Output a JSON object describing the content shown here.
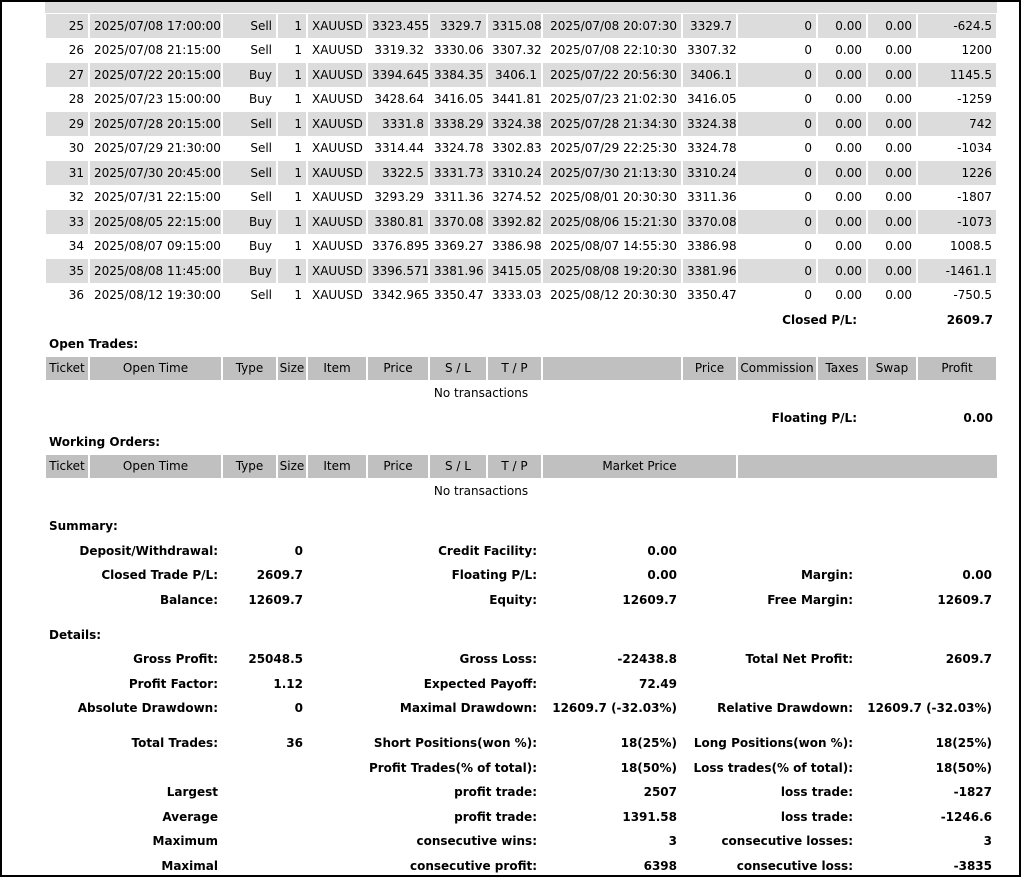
{
  "closed_trades": {
    "rows": [
      [
        "25",
        "2025/07/08 17:00:00",
        "Sell",
        "1",
        "XAUUSD",
        "3323.455",
        "3329.7",
        "3315.08",
        "2025/07/08 20:07:30",
        "3329.7",
        "0",
        "0.00",
        "0.00",
        "-624.5"
      ],
      [
        "26",
        "2025/07/08 21:15:00",
        "Sell",
        "1",
        "XAUUSD",
        "3319.32",
        "3330.06",
        "3307.32",
        "2025/07/08 22:10:30",
        "3307.32",
        "0",
        "0.00",
        "0.00",
        "1200"
      ],
      [
        "27",
        "2025/07/22 20:15:00",
        "Buy",
        "1",
        "XAUUSD",
        "3394.645",
        "3384.35",
        "3406.1",
        "2025/07/22 20:56:30",
        "3406.1",
        "0",
        "0.00",
        "0.00",
        "1145.5"
      ],
      [
        "28",
        "2025/07/23 15:00:00",
        "Buy",
        "1",
        "XAUUSD",
        "3428.64",
        "3416.05",
        "3441.81",
        "2025/07/23 21:02:30",
        "3416.05",
        "0",
        "0.00",
        "0.00",
        "-1259"
      ],
      [
        "29",
        "2025/07/28 20:15:00",
        "Sell",
        "1",
        "XAUUSD",
        "3331.8",
        "3338.29",
        "3324.38",
        "2025/07/28 21:34:30",
        "3324.38",
        "0",
        "0.00",
        "0.00",
        "742"
      ],
      [
        "30",
        "2025/07/29 21:30:00",
        "Sell",
        "1",
        "XAUUSD",
        "3314.44",
        "3324.78",
        "3302.83",
        "2025/07/29 22:25:30",
        "3324.78",
        "0",
        "0.00",
        "0.00",
        "-1034"
      ],
      [
        "31",
        "2025/07/30 20:45:00",
        "Sell",
        "1",
        "XAUUSD",
        "3322.5",
        "3331.73",
        "3310.24",
        "2025/07/30 21:13:30",
        "3310.24",
        "0",
        "0.00",
        "0.00",
        "1226"
      ],
      [
        "32",
        "2025/07/31 22:15:00",
        "Sell",
        "1",
        "XAUUSD",
        "3293.29",
        "3311.36",
        "3274.52",
        "2025/08/01 20:30:30",
        "3311.36",
        "0",
        "0.00",
        "0.00",
        "-1807"
      ],
      [
        "33",
        "2025/08/05 22:15:00",
        "Buy",
        "1",
        "XAUUSD",
        "3380.81",
        "3370.08",
        "3392.82",
        "2025/08/06 15:21:30",
        "3370.08",
        "0",
        "0.00",
        "0.00",
        "-1073"
      ],
      [
        "34",
        "2025/08/07 09:15:00",
        "Buy",
        "1",
        "XAUUSD",
        "3376.895",
        "3369.27",
        "3386.98",
        "2025/08/07 14:55:30",
        "3386.98",
        "0",
        "0.00",
        "0.00",
        "1008.5"
      ],
      [
        "35",
        "2025/08/08 11:45:00",
        "Buy",
        "1",
        "XAUUSD",
        "3396.571",
        "3381.96",
        "3415.05",
        "2025/08/08 19:20:30",
        "3381.96",
        "0",
        "0.00",
        "0.00",
        "-1461.1"
      ],
      [
        "36",
        "2025/08/12 19:30:00",
        "Sell",
        "1",
        "XAUUSD",
        "3342.965",
        "3350.47",
        "3333.03",
        "2025/08/12 20:30:30",
        "3350.47",
        "0",
        "0.00",
        "0.00",
        "-750.5"
      ]
    ],
    "total_label": "Closed P/L:",
    "total": "2609.7"
  },
  "open_trades": {
    "title": "Open Trades:",
    "columns": [
      "Ticket",
      "Open Time",
      "Type",
      "Size",
      "Item",
      "Price",
      "S / L",
      "T / P",
      null,
      "Price",
      "Commission",
      "Taxes",
      "Swap",
      "Profit"
    ],
    "empty": "No transactions",
    "total_label": "Floating P/L:",
    "total": "0.00"
  },
  "working_orders": {
    "title": "Working Orders:",
    "columns": [
      "Ticket",
      "Open Time",
      "Type",
      "Size",
      "Item",
      "Price",
      "S / L",
      "T / P",
      "Market Price"
    ],
    "empty": "No transactions"
  },
  "summary": {
    "title": "Summary:",
    "rows": [
      [
        "Deposit/Withdrawal:",
        "0",
        "Credit Facility:",
        "0.00",
        null,
        null
      ],
      [
        "Closed Trade P/L:",
        "2609.7",
        "Floating P/L:",
        "0.00",
        "Margin:",
        "0.00"
      ],
      [
        "Balance:",
        "12609.7",
        "Equity:",
        "12609.7",
        "Free Margin:",
        "12609.7"
      ]
    ]
  },
  "details": {
    "title": "Details:",
    "rows": [
      [
        "Gross Profit:",
        "25048.5",
        "Gross Loss:",
        "-22438.8",
        "Total Net Profit:",
        "2609.7"
      ],
      [
        "Profit Factor:",
        "1.12",
        "Expected Payoff:",
        "72.49",
        null,
        null
      ],
      [
        "Absolute Drawdown:",
        "0",
        "Maximal Drawdown:",
        "12609.7 (-32.03%)",
        "Relative Drawdown:",
        "12609.7 (-32.03%)"
      ],
      [
        "Total Trades:",
        "36",
        "Short Positions(won %):",
        "18(25%)",
        "Long Positions(won %):",
        "18(25%)"
      ],
      [
        null,
        null,
        "Profit Trades(% of total):",
        "18(50%)",
        "Loss trades(% of total):",
        "18(50%)"
      ],
      [
        "Largest",
        null,
        "profit trade:",
        "2507",
        "loss trade:",
        "-1827"
      ],
      [
        "Average",
        null,
        "profit trade:",
        "1391.58",
        "loss trade:",
        "-1246.6"
      ],
      [
        "Maximum",
        null,
        "consecutive wins:",
        "3",
        "consecutive losses:",
        "3"
      ],
      [
        "Maximal",
        null,
        "consecutive profit:",
        "6398",
        "consecutive loss:",
        "-3835"
      ]
    ]
  }
}
